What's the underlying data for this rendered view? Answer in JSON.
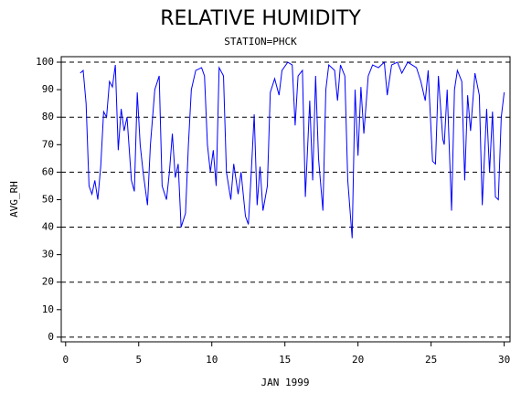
{
  "chart_data": {
    "type": "line",
    "title": "RELATIVE HUMIDITY",
    "subtitle": "STATION=PHCK",
    "xlabel": "JAN 1999",
    "ylabel": "AVG_RH",
    "xlim": [
      -0.3,
      30.4
    ],
    "xticks": [
      0,
      5,
      10,
      15,
      20,
      25,
      30
    ],
    "ylim": [
      -1.7,
      102
    ],
    "yticks": [
      0,
      10,
      20,
      30,
      40,
      50,
      60,
      70,
      80,
      90,
      100
    ],
    "ygrid": [
      0,
      20,
      40,
      60,
      80,
      100
    ],
    "series": [
      {
        "color": "#0000ff",
        "x": [
          1.0,
          1.2,
          1.4,
          1.6,
          1.8,
          2.0,
          2.2,
          2.4,
          2.6,
          2.8,
          3.0,
          3.2,
          3.4,
          3.6,
          3.8,
          4.0,
          4.2,
          4.5,
          4.7,
          4.9,
          5.1,
          5.3,
          5.6,
          5.8,
          6.1,
          6.4,
          6.6,
          6.9,
          7.1,
          7.3,
          7.5,
          7.7,
          7.9,
          8.2,
          8.4,
          8.6,
          8.9,
          9.3,
          9.5,
          9.7,
          9.9,
          10.1,
          10.3,
          10.5,
          10.8,
          11.0,
          11.3,
          11.5,
          11.8,
          12.0,
          12.3,
          12.5,
          12.7,
          12.9,
          13.1,
          13.3,
          13.5,
          13.8,
          14.0,
          14.3,
          14.6,
          14.8,
          15.2,
          15.5,
          15.7,
          15.9,
          16.2,
          16.4,
          16.7,
          16.9,
          17.1,
          17.3,
          17.6,
          17.8,
          18.0,
          18.4,
          18.6,
          18.8,
          19.1,
          19.3,
          19.6,
          19.8,
          20.0,
          20.2,
          20.4,
          20.7,
          21.0,
          21.4,
          21.8,
          22.0,
          22.3,
          22.7,
          23.0,
          23.4,
          23.7,
          24.0,
          24.3,
          24.6,
          24.8,
          25.1,
          25.3,
          25.5,
          25.8,
          25.9,
          26.1,
          26.4,
          26.6,
          26.8,
          27.1,
          27.3,
          27.5,
          27.7,
          28.0,
          28.3,
          28.5,
          28.8,
          29.0,
          29.2,
          29.4,
          29.6,
          29.8,
          30.0
        ],
        "values": [
          96,
          97,
          85,
          55,
          52,
          57,
          50,
          62,
          82,
          80,
          93,
          91,
          99,
          68,
          83,
          75,
          80,
          57,
          53,
          89,
          70,
          60,
          48,
          70,
          90,
          95,
          55,
          50,
          60,
          74,
          58,
          63,
          40,
          45,
          70,
          90,
          97,
          98,
          95,
          70,
          60,
          68,
          55,
          98,
          95,
          60,
          50,
          63,
          52,
          60,
          44,
          41,
          60,
          81,
          48,
          62,
          46,
          55,
          89,
          94,
          88,
          97,
          100,
          99,
          77,
          95,
          97,
          51,
          86,
          57,
          95,
          65,
          46,
          90,
          99,
          97,
          86,
          99,
          95,
          57,
          36,
          90,
          66,
          91,
          74,
          95,
          99,
          98,
          100,
          88,
          99,
          100,
          96,
          100,
          99,
          98,
          93,
          86,
          97,
          64,
          63,
          95,
          72,
          70,
          90,
          46,
          90,
          97,
          93,
          57,
          88,
          75,
          96,
          88,
          48,
          83,
          60,
          82,
          51,
          50,
          80,
          89
        ]
      }
    ]
  }
}
